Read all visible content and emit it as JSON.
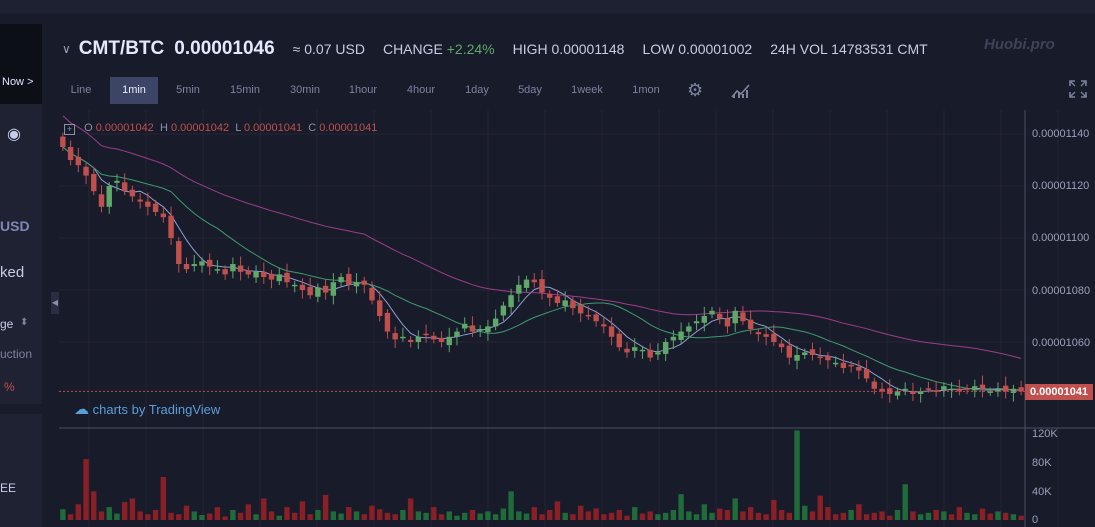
{
  "left_panel": {
    "now_btn": "Now >",
    "usd": "USD",
    "ked": "ked",
    "ge": "ge",
    "uction": "uction",
    "pct": "%",
    "ee": "EE"
  },
  "header": {
    "pair": "CMT/BTC",
    "price": "0.00001046",
    "usd_equiv": "≈ 0.07 USD",
    "change_label": "CHANGE",
    "change_value": "+2.24%",
    "high": "HIGH 0.00001148",
    "low": "LOW 0.00001002",
    "vol": "24H VOL 14783531 CMT",
    "watermark": "Huobi.pro"
  },
  "toolbar": {
    "intervals": [
      "Line",
      "1min",
      "5min",
      "15min",
      "30min",
      "1hour",
      "4hour",
      "1day",
      "5day",
      "1week",
      "1mon"
    ],
    "active": "1min"
  },
  "legend": {
    "o_label": "O",
    "o": "0.00001042",
    "h_label": "H",
    "h": "0.00001042",
    "l_label": "L",
    "l": "0.00001041",
    "c_label": "C",
    "c": "0.00001041"
  },
  "credit": "charts by TradingView",
  "current_price_tag": "0.00001041",
  "colors": {
    "up": "#5fa86a",
    "down": "#c0504d",
    "ma_fast": "#8ea0d0",
    "ma_mid": "#3f9b6e",
    "ma_slow": "#9c3d8a"
  },
  "chart_data": {
    "type": "candlestick",
    "price_axis_ticks": [
      "0.00001140",
      "0.00001120",
      "0.00001100",
      "0.00001080",
      "0.00001060"
    ],
    "price_axis_values": [
      1140,
      1120,
      1100,
      1080,
      1060
    ],
    "volume_axis_ticks": [
      "120K",
      "80K",
      "40K",
      "0"
    ],
    "volume_axis_values": [
      120,
      80,
      40,
      0
    ],
    "price_unit": "1e-8 BTC",
    "ohlc_close": [
      1135,
      1130,
      1128,
      1124,
      1118,
      1112,
      1120,
      1122,
      1118,
      1116,
      1114,
      1112,
      1110,
      1108,
      1100,
      1090,
      1088,
      1090,
      1091,
      1089,
      1088,
      1086,
      1090,
      1087,
      1086,
      1087,
      1085,
      1084,
      1086,
      1083,
      1082,
      1080,
      1078,
      1081,
      1079,
      1083,
      1085,
      1082,
      1083,
      1082,
      1076,
      1070,
      1064,
      1061,
      1062,
      1060,
      1062,
      1063,
      1061,
      1060,
      1062,
      1064,
      1067,
      1064,
      1065,
      1066,
      1069,
      1074,
      1078,
      1082,
      1084,
      1083,
      1079,
      1077,
      1075,
      1076,
      1073,
      1071,
      1070,
      1068,
      1066,
      1062,
      1058,
      1056,
      1058,
      1057,
      1054,
      1056,
      1060,
      1062,
      1064,
      1066,
      1068,
      1070,
      1072,
      1069,
      1066,
      1072,
      1068,
      1065,
      1063,
      1062,
      1060,
      1058,
      1054,
      1055,
      1056,
      1055,
      1054,
      1053,
      1052,
      1050,
      1051,
      1049,
      1046,
      1042,
      1041,
      1040,
      1041,
      1042,
      1040,
      1041,
      1042,
      1041,
      1043,
      1042,
      1041,
      1042,
      1043,
      1042,
      1041,
      1042,
      1041,
      1042,
      1041
    ],
    "volume": [
      15,
      8,
      22,
      85,
      40,
      12,
      18,
      9,
      25,
      30,
      12,
      8,
      14,
      60,
      10,
      8,
      20,
      12,
      7,
      9,
      18,
      5,
      14,
      10,
      22,
      8,
      30,
      12,
      6,
      18,
      10,
      26,
      8,
      14,
      35,
      12,
      9,
      18,
      12,
      8,
      20,
      15,
      10,
      8,
      14,
      30,
      12,
      10,
      18,
      8,
      12,
      6,
      10,
      14,
      9,
      12,
      8,
      16,
      40,
      12,
      9,
      18,
      8,
      14,
      26,
      10,
      8,
      20,
      12,
      16,
      8,
      10,
      14,
      6,
      18,
      9,
      12,
      8,
      10,
      14,
      36,
      12,
      8,
      22,
      10,
      16,
      14,
      30,
      12,
      18,
      10,
      8,
      28,
      14,
      10,
      125,
      20,
      12,
      34,
      18,
      8,
      10,
      14,
      22,
      8,
      10,
      12,
      6,
      14,
      50,
      12,
      8,
      10,
      14,
      12,
      8,
      18,
      10,
      8,
      16,
      9,
      12,
      10,
      8,
      6
    ]
  }
}
